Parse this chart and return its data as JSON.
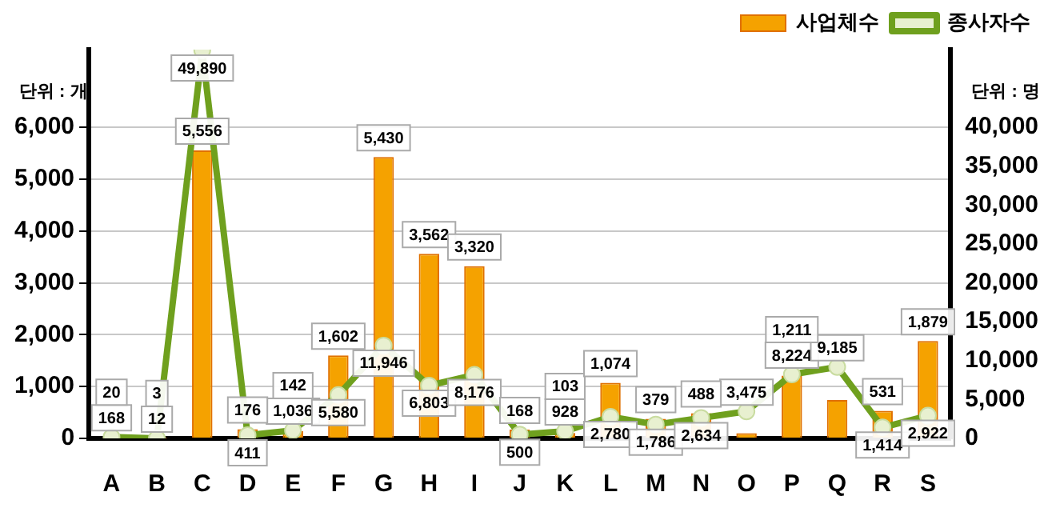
{
  "chart_data": {
    "type": "bar",
    "categories": [
      "A",
      "B",
      "C",
      "D",
      "E",
      "F",
      "G",
      "H",
      "I",
      "J",
      "K",
      "L",
      "M",
      "N",
      "O",
      "P",
      "Q",
      "R",
      "S"
    ],
    "series": [
      {
        "name": "사업체수",
        "type": "bar",
        "color": "#f5a200",
        "values": [
          20,
          3,
          5556,
          176,
          142,
          1602,
          5430,
          3562,
          3320,
          168,
          103,
          1074,
          379,
          488,
          100,
          1211,
          740,
          531,
          1879
        ],
        "value_labels": [
          "20",
          "3",
          "5,556",
          "176",
          "142",
          "1,602",
          "5,430",
          "3,562",
          "3,320",
          "168",
          "103",
          "1,074",
          "379",
          "488",
          null,
          "1,211",
          null,
          "531",
          "1,879"
        ]
      },
      {
        "name": "종사자수",
        "type": "line",
        "axis": "y2",
        "color": "#6fa01e",
        "values": [
          168,
          12,
          49890,
          411,
          1036,
          5580,
          11946,
          6803,
          8176,
          500,
          928,
          2780,
          1786,
          2634,
          3475,
          8224,
          9185,
          1414,
          2922
        ],
        "value_labels": [
          "168",
          "12",
          "49,890",
          "411",
          "1,036",
          "5,580",
          "11,946",
          "6,803",
          "8,176",
          "500",
          "928",
          "2,780",
          "1,786",
          "2,634",
          "3,475",
          "8,224",
          "9,185",
          "1,414",
          "2,922"
        ]
      }
    ],
    "ylabel": "단위 : 개",
    "y2label": "단위 : 명",
    "ylim": [
      0,
      7500
    ],
    "yticks": [
      0,
      {
        "value": 1000,
        "label": "1,000"
      },
      {
        "value": 2000,
        "label": "2,000"
      },
      {
        "value": 3000,
        "label": "3,000"
      },
      {
        "value": 4000,
        "label": "4,000"
      },
      {
        "value": 5000,
        "label": "5,000"
      },
      {
        "value": 6000,
        "label": "6,000"
      }
    ],
    "y2lim": [
      0,
      50000
    ],
    "y2ticks": [
      0,
      {
        "value": 5000,
        "label": "5,000"
      },
      {
        "value": 10000,
        "label": "10,000"
      },
      {
        "value": 15000,
        "label": "15,000"
      },
      {
        "value": 20000,
        "label": "20,000"
      },
      {
        "value": 25000,
        "label": "25,000"
      },
      {
        "value": 30000,
        "label": "30,000"
      },
      {
        "value": 35000,
        "label": "35,000"
      },
      {
        "value": 40000,
        "label": "40,000"
      }
    ],
    "grid": "y",
    "legend": "top right",
    "marker": "circle",
    "line_style": "solid"
  }
}
